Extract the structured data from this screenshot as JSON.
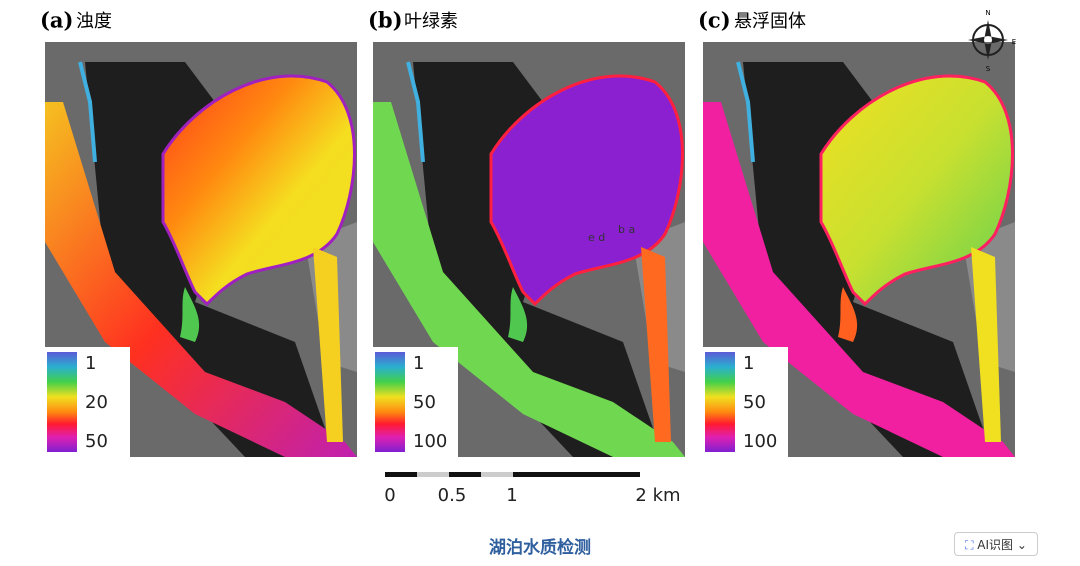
{
  "panels": [
    {
      "label": "(a)",
      "title": "浊度",
      "legend": [
        "1",
        "20",
        "50"
      ]
    },
    {
      "label": "(b)",
      "title": "叶绿素",
      "legend": [
        "1",
        "50",
        "100"
      ],
      "sites": [
        "e d",
        "b a"
      ]
    },
    {
      "label": "(c)",
      "title": "悬浮固体",
      "legend": [
        "1",
        "50",
        "100"
      ]
    }
  ],
  "compass": [
    "N",
    "E",
    "S"
  ],
  "scale_bar": [
    "0",
    "0.5",
    "1",
    "2 km"
  ],
  "caption": "湖泊水质检测",
  "button": "AI识图"
}
